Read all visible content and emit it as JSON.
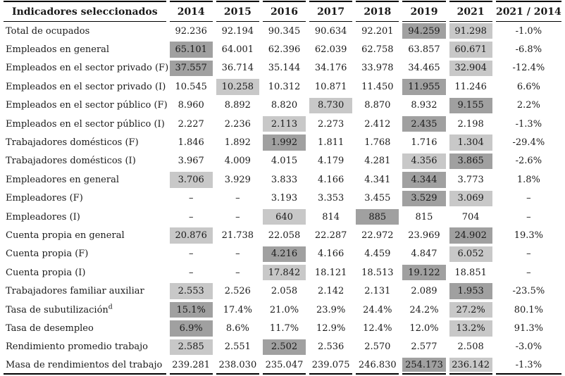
{
  "table": {
    "header": {
      "indicator_col": "Indicadores seleccionados",
      "columns": [
        "2014",
        "2015",
        "2016",
        "2017",
        "2018",
        "2019",
        "2021",
        "2021 / 2014"
      ]
    },
    "highlight_colors": {
      "dark": "#a0a0a0",
      "light": "#c8c8c8"
    },
    "rows": [
      {
        "label": "Total de ocupados",
        "values": [
          "92.236",
          "92.194",
          "90.345",
          "90.634",
          "92.201",
          "94.259",
          "91.298",
          "-1.0%"
        ],
        "highlights": [
          null,
          null,
          null,
          null,
          null,
          "dark",
          "light",
          null
        ]
      },
      {
        "label": "Empleados en general",
        "values": [
          "65.101",
          "64.001",
          "62.396",
          "62.039",
          "62.758",
          "63.857",
          "60.671",
          "-6.8%"
        ],
        "highlights": [
          "dark",
          null,
          null,
          null,
          null,
          null,
          "light",
          null
        ]
      },
      {
        "label": "Empleados en el sector privado (F)",
        "values": [
          "37.557",
          "36.714",
          "35.144",
          "34.176",
          "33.978",
          "34.465",
          "32.904",
          "-12.4%"
        ],
        "highlights": [
          "dark",
          null,
          null,
          null,
          null,
          null,
          "light",
          null
        ]
      },
      {
        "label": "Empleados en el sector privado (I)",
        "values": [
          "10.545",
          "10.258",
          "10.312",
          "10.871",
          "11.450",
          "11.955",
          "11.246",
          "6.6%"
        ],
        "highlights": [
          null,
          "light",
          null,
          null,
          null,
          "dark",
          null,
          null
        ]
      },
      {
        "label": "Empleados en el sector público (F)",
        "values": [
          "8.960",
          "8.892",
          "8.820",
          "8.730",
          "8.870",
          "8.932",
          "9.155",
          "2.2%"
        ],
        "highlights": [
          null,
          null,
          null,
          "light",
          null,
          null,
          "dark",
          null
        ]
      },
      {
        "label": "Empleados en el sector público (I)",
        "values": [
          "2.227",
          "2.236",
          "2.113",
          "2.273",
          "2.412",
          "2.435",
          "2.198",
          "-1.3%"
        ],
        "highlights": [
          null,
          null,
          "light",
          null,
          null,
          "dark",
          null,
          null
        ]
      },
      {
        "label": "Trabajadores domésticos (F)",
        "values": [
          "1.846",
          "1.892",
          "1.992",
          "1.811",
          "1.768",
          "1.716",
          "1.304",
          "-29.4%"
        ],
        "highlights": [
          null,
          null,
          "dark",
          null,
          null,
          null,
          "light",
          null
        ]
      },
      {
        "label": "Trabajadores domésticos (I)",
        "values": [
          "3.967",
          "4.009",
          "4.015",
          "4.179",
          "4.281",
          "4.356",
          "3.865",
          "-2.6%"
        ],
        "highlights": [
          null,
          null,
          null,
          null,
          null,
          "light",
          "dark",
          null
        ]
      },
      {
        "label": "Empleadores en general",
        "values": [
          "3.706",
          "3.929",
          "3.833",
          "4.166",
          "4.341",
          "4.344",
          "3.773",
          "1.8%"
        ],
        "highlights": [
          "light",
          null,
          null,
          null,
          null,
          "dark",
          null,
          null
        ]
      },
      {
        "label": "Empleadores (F)",
        "values": [
          "–",
          "–",
          "3.193",
          "3.353",
          "3.455",
          "3.529",
          "3.069",
          "–"
        ],
        "highlights": [
          null,
          null,
          null,
          null,
          null,
          "dark",
          "light",
          null
        ]
      },
      {
        "label": "Empleadores (I)",
        "values": [
          "–",
          "–",
          "640",
          "814",
          "885",
          "815",
          "704",
          "–"
        ],
        "highlights": [
          null,
          null,
          "light",
          null,
          "dark",
          null,
          null,
          null
        ]
      },
      {
        "label": "Cuenta propia en general",
        "values": [
          "20.876",
          "21.738",
          "22.058",
          "22.287",
          "22.972",
          "23.969",
          "24.902",
          "19.3%"
        ],
        "highlights": [
          "light",
          null,
          null,
          null,
          null,
          null,
          "dark",
          null
        ]
      },
      {
        "label": "Cuenta propia (F)",
        "values": [
          "–",
          "–",
          "4.216",
          "4.166",
          "4.459",
          "4.847",
          "6.052",
          "–"
        ],
        "highlights": [
          null,
          null,
          "dark",
          null,
          null,
          null,
          "light",
          null
        ]
      },
      {
        "label": "Cuenta propia (I)",
        "values": [
          "–",
          "–",
          "17.842",
          "18.121",
          "18.513",
          "19.122",
          "18.851",
          "–"
        ],
        "highlights": [
          null,
          null,
          "light",
          null,
          null,
          "dark",
          null,
          null
        ]
      },
      {
        "label": "Trabajadores familiar auxiliar",
        "values": [
          "2.553",
          "2.526",
          "2.058",
          "2.142",
          "2.131",
          "2.089",
          "1.953",
          "-23.5%"
        ],
        "highlights": [
          "light",
          null,
          null,
          null,
          null,
          null,
          "dark",
          null
        ]
      },
      {
        "label": "Tasa de subutilización",
        "sup": "d",
        "values": [
          "15.1%",
          "17.4%",
          "21.0%",
          "23.9%",
          "24.4%",
          "24.2%",
          "27.2%",
          "80.1%"
        ],
        "highlights": [
          "dark",
          null,
          null,
          null,
          null,
          null,
          "light",
          null
        ]
      },
      {
        "label": "Tasa de desempleo",
        "values": [
          "6.9%",
          "8.6%",
          "11.7%",
          "12.9%",
          "12.4%",
          "12.0%",
          "13.2%",
          "91.3%"
        ],
        "highlights": [
          "dark",
          null,
          null,
          null,
          null,
          null,
          "light",
          null
        ]
      },
      {
        "label": "Rendimiento promedio trabajo",
        "values": [
          "2.585",
          "2.551",
          "2.502",
          "2.536",
          "2.570",
          "2.577",
          "2.508",
          "-3.0%"
        ],
        "highlights": [
          "light",
          null,
          "dark",
          null,
          null,
          null,
          null,
          null
        ]
      },
      {
        "label": "Masa de rendimientos del trabajo",
        "values": [
          "239.281",
          "238.030",
          "235.047",
          "239.075",
          "246.830",
          "254.173",
          "236.142",
          "-1.3%"
        ],
        "highlights": [
          null,
          null,
          null,
          null,
          null,
          "dark",
          "light",
          null
        ]
      }
    ]
  }
}
